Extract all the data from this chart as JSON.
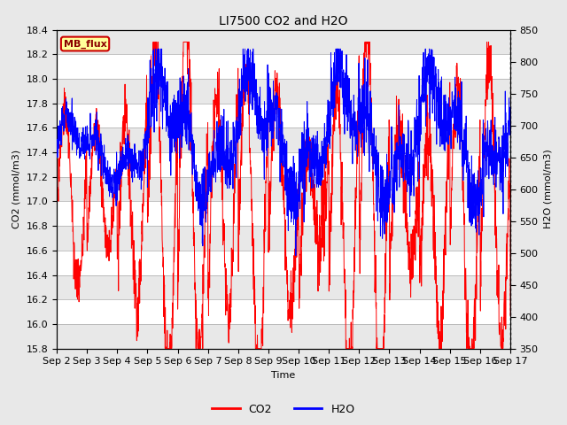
{
  "title": "LI7500 CO2 and H2O",
  "xlabel": "Time",
  "ylabel_left": "CO2 (mmol/m3)",
  "ylabel_right": "H2O (mmol/m3)",
  "ylim_left": [
    15.8,
    18.4
  ],
  "ylim_right": [
    350,
    850
  ],
  "yticks_left": [
    15.8,
    16.0,
    16.2,
    16.4,
    16.6,
    16.8,
    17.0,
    17.2,
    17.4,
    17.6,
    17.8,
    18.0,
    18.2,
    18.4
  ],
  "yticks_right": [
    350,
    400,
    450,
    500,
    550,
    600,
    650,
    700,
    750,
    800,
    850
  ],
  "xticklabels": [
    "Sep 2",
    "Sep 3",
    "Sep 4",
    "Sep 5",
    "Sep 6",
    "Sep 7",
    "Sep 8",
    "Sep 9",
    "Sep 10",
    "Sep 11",
    "Sep 12",
    "Sep 13",
    "Sep 14",
    "Sep 15",
    "Sep 16",
    "Sep 17"
  ],
  "legend_labels": [
    "CO2",
    "H2O"
  ],
  "co2_color": "#FF0000",
  "h2o_color": "#0000FF",
  "annotation_text": "MB_flux",
  "annotation_bg": "#FFFF99",
  "annotation_border": "#CC0000",
  "fig_facecolor": "#E8E8E8",
  "plot_facecolor": "#FFFFFF",
  "grid_color": "#CCCCCC",
  "title_fontsize": 10,
  "axis_fontsize": 8,
  "tick_fontsize": 8,
  "n_days": 15,
  "n_per_day": 144,
  "seed": 12345
}
